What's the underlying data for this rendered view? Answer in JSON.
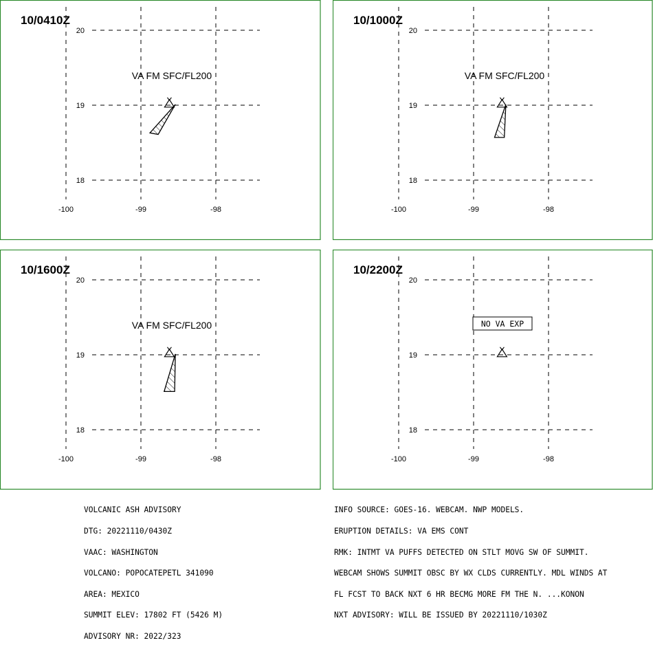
{
  "panels": [
    {
      "time": "10/0410Z",
      "label": "VA FM SFC/FL200",
      "label_type": "text",
      "ash": [
        [
          -98.54,
          19.01
        ],
        [
          -98.77,
          18.61
        ],
        [
          -98.88,
          18.63
        ]
      ]
    },
    {
      "time": "10/1000Z",
      "label": "VA FM SFC/FL200",
      "label_type": "text",
      "ash": [
        [
          -98.57,
          19.01
        ],
        [
          -98.59,
          18.57
        ],
        [
          -98.72,
          18.57
        ]
      ]
    },
    {
      "time": "10/1600Z",
      "label": "VA FM SFC/FL200",
      "label_type": "text",
      "ash": [
        [
          -98.54,
          19.01
        ],
        [
          -98.55,
          18.51
        ],
        [
          -98.69,
          18.51
        ]
      ]
    },
    {
      "time": "10/2200Z",
      "label": "NO VA EXP",
      "label_type": "box",
      "ash": []
    }
  ],
  "axes": {
    "lon_ticks": [
      "-100",
      "-99",
      "-98"
    ],
    "lat_ticks": [
      "20",
      "19",
      "18"
    ],
    "lon_values": [
      -100,
      -99,
      -98
    ],
    "lat_values": [
      20,
      19,
      18
    ]
  },
  "volcano": {
    "lon": -98.62,
    "lat": 19.02,
    "icon": "volcano-triangle-icon"
  },
  "colors": {
    "frame": "#2e8b2e",
    "ink": "#000000"
  },
  "left_text": [
    "VOLCANIC ASH ADVISORY",
    "DTG: 20221110/0430Z",
    "VAAC: WASHINGTON",
    "VOLCANO: POPOCATEPETL 341090",
    "AREA: MEXICO",
    "SUMMIT ELEV: 17802 FT (5426 M)",
    "ADVISORY NR: 2022/323"
  ],
  "right_text": [
    "INFO SOURCE: GOES-16. WEBCAM. NWP MODELS.",
    "ERUPTION DETAILS: VA EMS CONT",
    "RMK: INTMT VA PUFFS DETECTED ON STLT MOVG SW OF SUMMIT.",
    "WEBCAM SHOWS SUMMIT OBSC BY WX CLDS CURRENTLY. MDL WINDS AT",
    "FL FCST TO BACK NXT 6 HR BECMG MORE FM THE N. ...KONON",
    "NXT ADVISORY: WILL BE ISSUED BY 20221110/1030Z"
  ]
}
